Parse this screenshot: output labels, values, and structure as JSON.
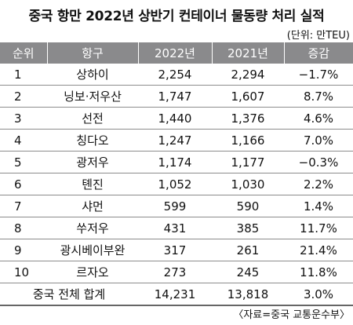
{
  "title": "중국 항만 2022년 상반기 컨테이너 물동량 처리 실적",
  "unit": "(단위: 만TEU)",
  "headers": {
    "rank": "순위",
    "port": "항구",
    "y2022": "2022년",
    "y2021": "2021년",
    "change": "증감"
  },
  "rows": [
    {
      "rank": "1",
      "port": "상하이",
      "y2022": "2,254",
      "y2021": "2,294",
      "change": "−1.7%"
    },
    {
      "rank": "2",
      "port": "닝보·저우산",
      "y2022": "1,747",
      "y2021": "1,607",
      "change": "8.7%"
    },
    {
      "rank": "3",
      "port": "선전",
      "y2022": "1,440",
      "y2021": "1,376",
      "change": "4.6%"
    },
    {
      "rank": "4",
      "port": "칭다오",
      "y2022": "1,247",
      "y2021": "1,166",
      "change": "7.0%"
    },
    {
      "rank": "5",
      "port": "광저우",
      "y2022": "1,174",
      "y2021": "1,177",
      "change": "−0.3%"
    },
    {
      "rank": "6",
      "port": "톈진",
      "y2022": "1,052",
      "y2021": "1,030",
      "change": "2.2%"
    },
    {
      "rank": "7",
      "port": "샤먼",
      "y2022": "599",
      "y2021": "590",
      "change": "1.4%"
    },
    {
      "rank": "8",
      "port": "쑤저우",
      "y2022": "431",
      "y2021": "385",
      "change": "11.7%"
    },
    {
      "rank": "9",
      "port": "광시베이부완",
      "y2022": "317",
      "y2021": "261",
      "change": "21.4%"
    },
    {
      "rank": "10",
      "port": "르자오",
      "y2022": "273",
      "y2021": "245",
      "change": "11.8%"
    }
  ],
  "total": {
    "label": "중국 전체 합계",
    "y2022": "14,231",
    "y2021": "13,818",
    "change": "3.0%"
  },
  "source": "〈자료=중국 교통운수부〉",
  "colors": {
    "header_bg": "#8a8a8c",
    "header_text": "#ffffff",
    "rule": "#8c8c8c"
  }
}
